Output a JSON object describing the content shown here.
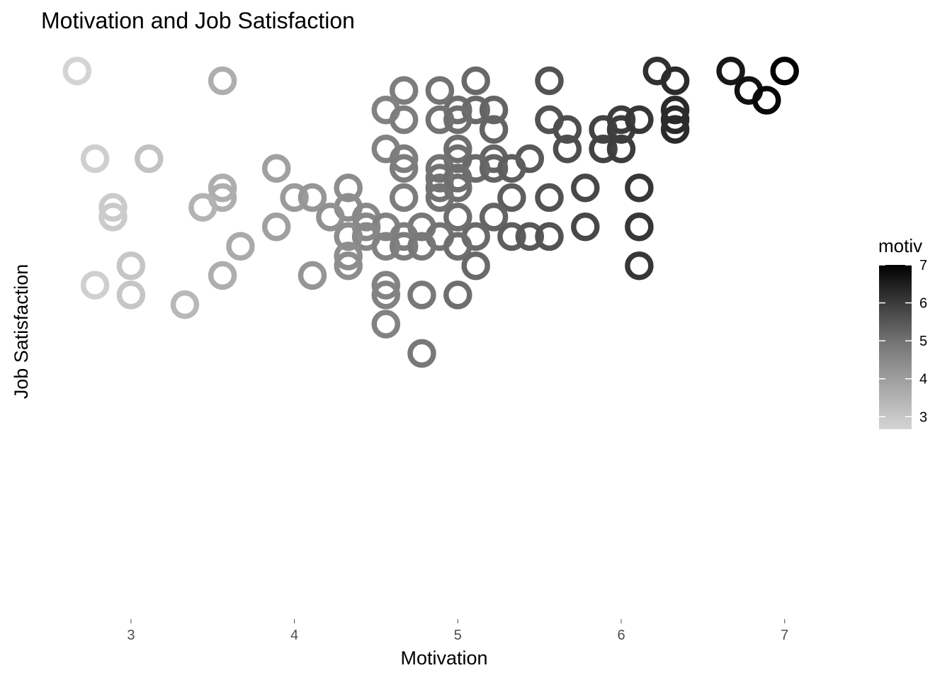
{
  "chart_data": {
    "type": "scatter",
    "title": "Motivation and Job Satisfaction",
    "xlabel": "Motivation",
    "ylabel": "Job Satisfaction",
    "xlim": [
      2.45,
      7.4
    ],
    "ylim": [
      0.93,
      6.75
    ],
    "x_ticks": [
      "3",
      "4",
      "5",
      "6",
      "7"
    ],
    "grid": false,
    "legend": {
      "title": "motiv",
      "position": "right",
      "ticks": [
        "3",
        "4",
        "5",
        "6",
        "7"
      ],
      "range": [
        2.67,
        7.0
      ],
      "color_low": "#d4d4d4",
      "color_high": "#000000"
    },
    "x": [
      2.67,
      3.56,
      3.56,
      3.56,
      2.78,
      3.11,
      2.89,
      2.89,
      3.44,
      3.89,
      3.89,
      3.67,
      3.0,
      3.56,
      2.78,
      3.0,
      3.33,
      4.67,
      4.89,
      5.11,
      5.56,
      4.56,
      5.0,
      5.11,
      5.22,
      4.67,
      4.89,
      5.0,
      5.22,
      4.56,
      4.67,
      5.0,
      5.0,
      5.22,
      5.44,
      4.67,
      4.89,
      5.11,
      5.22,
      5.33,
      4.89,
      5.0,
      4.33,
      4.0,
      4.11,
      4.67,
      4.89,
      5.33,
      5.56,
      4.89,
      5.0,
      5.22,
      4.33,
      4.44,
      4.22,
      5.0,
      4.44,
      4.56,
      4.78,
      4.33,
      4.44,
      4.67,
      4.89,
      5.11,
      5.33,
      5.44,
      5.56,
      4.56,
      4.67,
      4.78,
      5.0,
      4.33,
      4.33,
      5.11,
      4.11,
      4.56,
      4.56,
      4.78,
      5.0,
      4.56,
      4.78,
      5.56,
      5.56,
      5.67,
      5.67,
      5.89,
      5.89,
      6.0,
      6.0,
      6.0,
      6.11,
      6.22,
      6.33,
      6.33,
      6.33,
      6.33,
      5.78,
      6.11,
      5.78,
      6.11,
      6.11,
      6.11,
      6.67,
      7.0,
      6.78,
      6.89
    ],
    "y": [
      6.53,
      6.43,
      5.33,
      5.23,
      5.63,
      5.63,
      5.13,
      5.03,
      5.13,
      5.53,
      4.93,
      4.73,
      4.53,
      4.43,
      4.33,
      4.23,
      4.13,
      6.33,
      6.33,
      6.43,
      6.43,
      6.13,
      6.13,
      6.13,
      6.13,
      6.03,
      6.03,
      6.03,
      5.93,
      5.73,
      5.63,
      5.73,
      5.63,
      5.63,
      5.63,
      5.53,
      5.53,
      5.53,
      5.53,
      5.53,
      5.33,
      5.33,
      5.33,
      5.23,
      5.23,
      5.23,
      5.23,
      5.23,
      5.23,
      5.43,
      5.43,
      5.03,
      5.13,
      5.03,
      5.03,
      5.03,
      4.93,
      4.93,
      4.93,
      4.83,
      4.83,
      4.83,
      4.83,
      4.83,
      4.83,
      4.83,
      4.83,
      4.73,
      4.73,
      4.73,
      4.73,
      4.63,
      4.53,
      4.53,
      4.43,
      4.33,
      4.23,
      4.23,
      4.23,
      3.93,
      3.63,
      6.03,
      6.03,
      5.93,
      5.73,
      5.93,
      5.73,
      6.03,
      5.93,
      5.73,
      6.03,
      6.53,
      6.43,
      6.13,
      6.03,
      5.93,
      5.33,
      5.33,
      4.93,
      4.93,
      4.93,
      4.53,
      6.53,
      6.53,
      6.33,
      6.23
    ]
  }
}
